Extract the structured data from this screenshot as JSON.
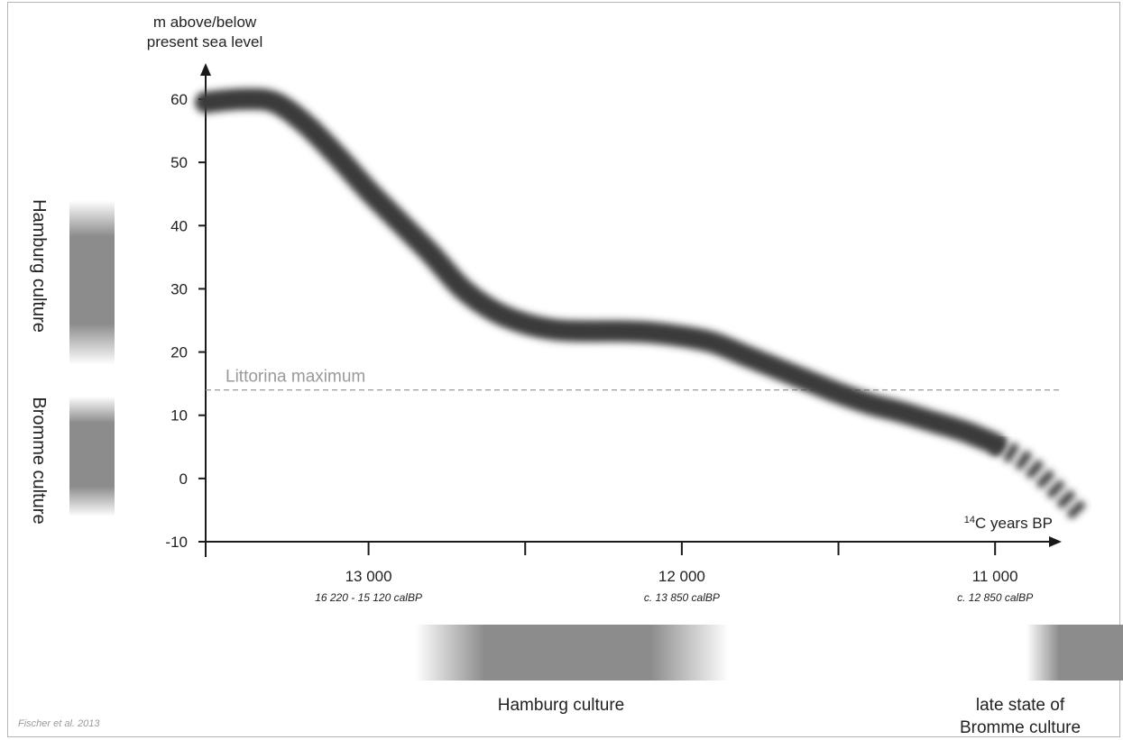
{
  "chart_data": {
    "type": "line",
    "ylabel_line1": "m above/below",
    "ylabel_line2": "present sea level",
    "xlabel_sup": "14",
    "xlabel": "C years BP",
    "ylim": [
      -10,
      63
    ],
    "xlim": [
      13520,
      10750
    ],
    "yticks": [
      60,
      50,
      40,
      30,
      20,
      10,
      0,
      -10
    ],
    "xticks": [
      {
        "value": 13000,
        "label": "13 000",
        "sublabel": "16 220 - 15 120 calBP"
      },
      {
        "value": 12000,
        "label": "12 000",
        "sublabel": "c. 13 850 calBP"
      },
      {
        "value": 11000,
        "label": "11 000",
        "sublabel": "c. 12 850 calBP"
      }
    ],
    "minor_xticks": [
      12500,
      11500
    ],
    "series": [
      {
        "style": "blurred-band",
        "x": [
          13520,
          13400,
          13300,
          13200,
          13100,
          13000,
          12900,
          12800,
          12700,
          12600,
          12500,
          12400,
          12300,
          12200,
          12100,
          12000,
          11900,
          11800,
          11700,
          11600,
          11500,
          11400,
          11300,
          11200,
          11100,
          11000
        ],
        "y": [
          59.5,
          60,
          59.5,
          56,
          51,
          45.5,
          40.5,
          35.5,
          30,
          26.5,
          24.5,
          23.5,
          23.3,
          23.3,
          23.1,
          22.5,
          21.5,
          19.5,
          17.5,
          15.5,
          13.5,
          11.8,
          10.5,
          9,
          7.5,
          5.5
        ]
      },
      {
        "style": "dashed-band",
        "x": [
          11000,
          10900,
          10800,
          10720
        ],
        "y": [
          5.5,
          2.5,
          -2,
          -6
        ]
      }
    ],
    "reference_line": {
      "label": "Littorina maximum",
      "y": 14
    },
    "x_culture_bands": [
      {
        "label": "Hamburg culture",
        "x_start": 12850,
        "x_end": 11850
      },
      {
        "label_line1": "late state of",
        "label_line2": "Bromme culture",
        "x_start": 10900,
        "x_end": 10550
      }
    ],
    "y_culture_bands": [
      {
        "label": "Hamburg culture",
        "y_start": 18,
        "y_end": 44
      },
      {
        "label": "Bromme culture",
        "y_start": -6,
        "y_end": 13
      }
    ]
  },
  "source": "Fischer et al. 2013",
  "colors": {
    "curve": "#3a3a3a",
    "band": "#8c8c8c",
    "reference": "#9a9a9a",
    "axis": "#1a1a1a"
  }
}
